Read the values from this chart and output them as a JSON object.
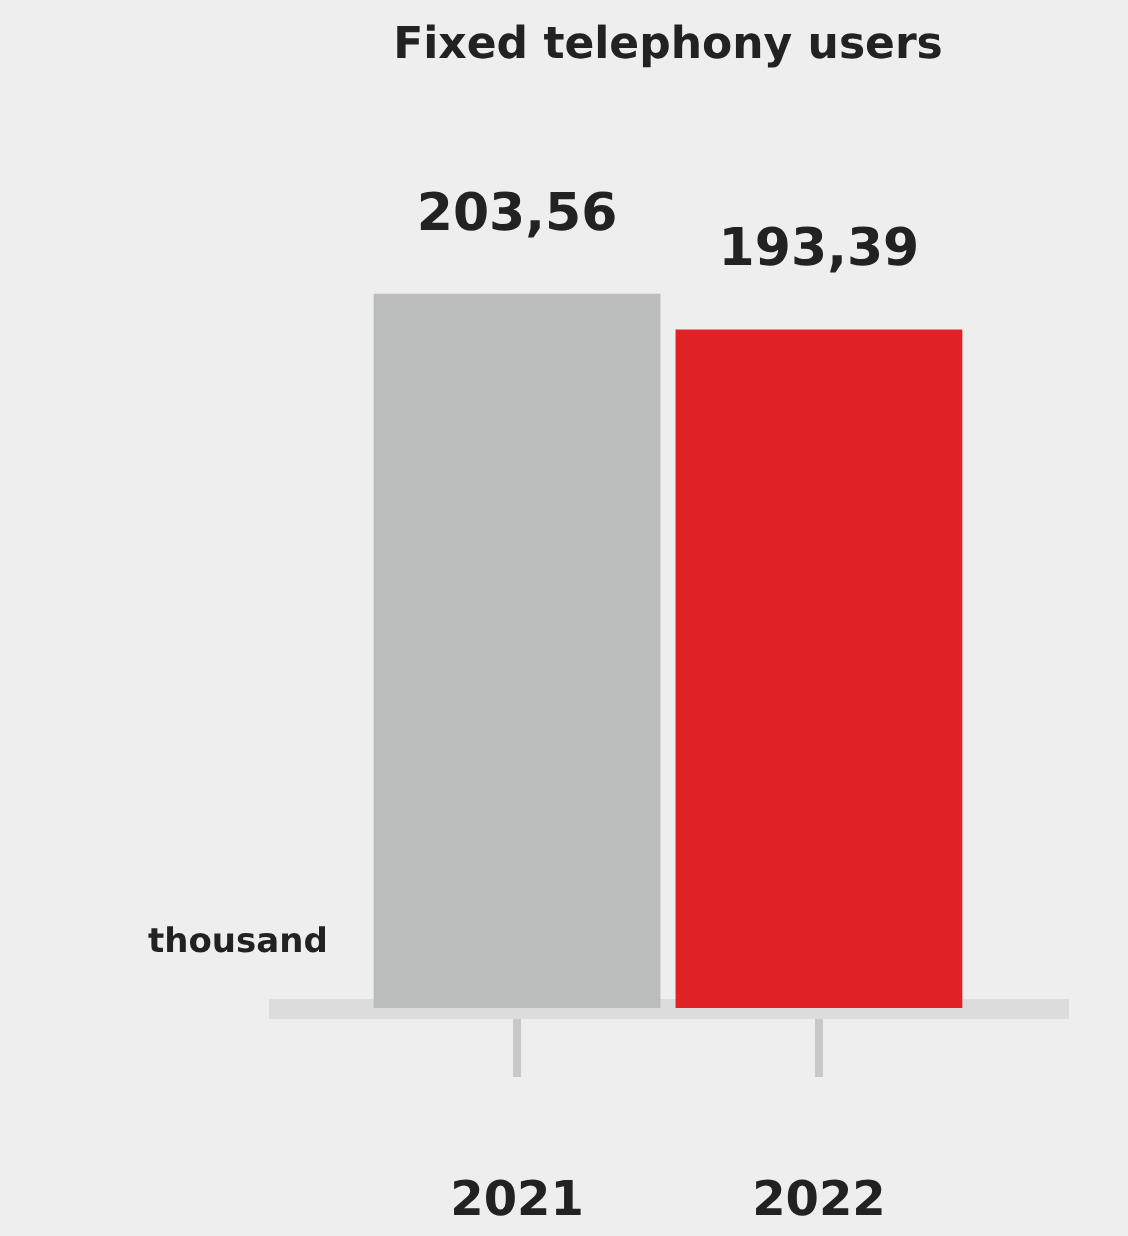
{
  "chart_data": {
    "type": "bar",
    "title": "Fixed telephony users",
    "categories": [
      "2021",
      "2022"
    ],
    "values": [
      203.56,
      193.39
    ],
    "value_labels": [
      "203,56",
      "193,39"
    ],
    "colors": [
      "#bbbdbc",
      "#e02227"
    ],
    "annotations": [
      "thousand"
    ]
  }
}
